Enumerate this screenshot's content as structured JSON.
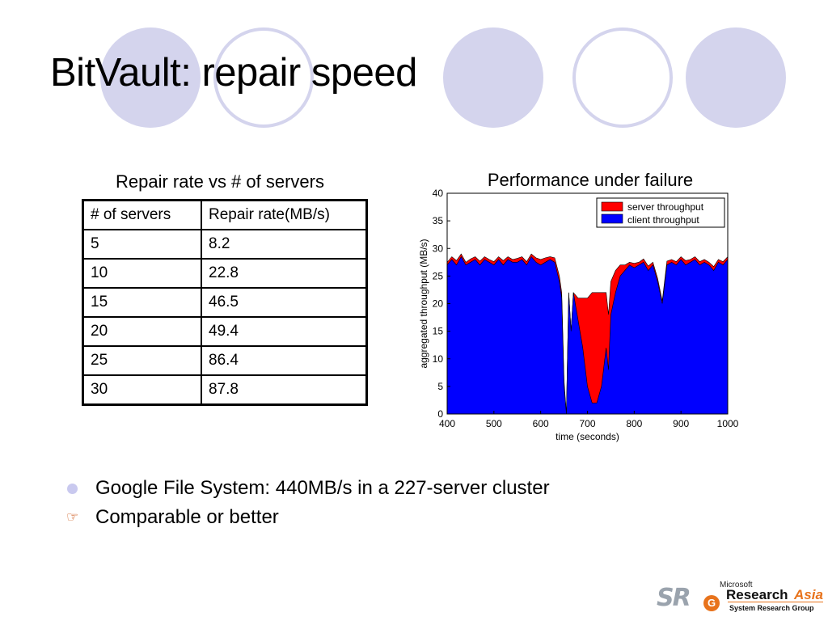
{
  "slide": {
    "title": "BitVault: repair speed"
  },
  "table": {
    "caption": "Repair rate vs # of servers",
    "headers": [
      "# of servers",
      "Repair rate(MB/s)"
    ],
    "rows": [
      [
        "5",
        "8.2"
      ],
      [
        "10",
        "22.8"
      ],
      [
        "15",
        "46.5"
      ],
      [
        "20",
        "49.4"
      ],
      [
        "25",
        "86.4"
      ],
      [
        "30",
        "87.8"
      ]
    ]
  },
  "bullets": [
    {
      "icon": "circle-bullet-icon",
      "text": "Google File System: 440MB/s in a 227-server cluster"
    },
    {
      "icon": "pointing-hand-icon",
      "text": "Comparable or better"
    }
  ],
  "logo": {
    "sr": "SR",
    "g": "G",
    "microsoft": "Microsoft",
    "research": "Research",
    "asia": "Asia",
    "group": "System Research Group"
  },
  "colors": {
    "server": "#ff0000",
    "client": "#0000ff",
    "deco_fill": "#d4d4ed",
    "deco_ring": "#d4d4ed"
  },
  "chart_data": [
    {
      "type": "table",
      "title": "Repair rate vs # of servers",
      "columns": [
        "# of servers",
        "Repair rate(MB/s)"
      ],
      "x": [
        5,
        10,
        15,
        20,
        25,
        30
      ],
      "values": [
        8.2,
        22.8,
        46.5,
        49.4,
        86.4,
        87.8
      ]
    },
    {
      "type": "area",
      "stacked": true,
      "title": "Performance under failure",
      "xlabel": "time (seconds)",
      "ylabel": "aggregated throughput (MB/s)",
      "xlim": [
        400,
        1000
      ],
      "ylim": [
        0,
        40
      ],
      "xticks": [
        400,
        500,
        600,
        700,
        800,
        900,
        1000
      ],
      "yticks": [
        0,
        5,
        10,
        15,
        20,
        25,
        30,
        35,
        40
      ],
      "legend": "top-right",
      "x": [
        400,
        410,
        420,
        430,
        440,
        450,
        460,
        470,
        480,
        490,
        500,
        510,
        520,
        530,
        540,
        550,
        560,
        570,
        580,
        590,
        600,
        610,
        620,
        630,
        640,
        645,
        650,
        655,
        660,
        665,
        670,
        680,
        690,
        700,
        710,
        720,
        730,
        740,
        745,
        750,
        760,
        770,
        780,
        790,
        800,
        810,
        820,
        830,
        840,
        850,
        860,
        870,
        880,
        890,
        900,
        910,
        920,
        930,
        940,
        950,
        960,
        970,
        980,
        990,
        1000
      ],
      "series": [
        {
          "name": "client throughput",
          "values": [
            27,
            28,
            27,
            28.5,
            27,
            27.5,
            28,
            27,
            28,
            27.5,
            27,
            28,
            27,
            28,
            27.5,
            27.5,
            28,
            27,
            28.5,
            27.5,
            27,
            27.5,
            28,
            27.5,
            24,
            21,
            5,
            0,
            22,
            15,
            22,
            17,
            12,
            5,
            2,
            2,
            5,
            12,
            8,
            18,
            22,
            25,
            26,
            27,
            26.5,
            27,
            27.5,
            26,
            27,
            24,
            20,
            27,
            27.5,
            27,
            28,
            27,
            27.5,
            28,
            27,
            27.5,
            27,
            26,
            27.5,
            27,
            28
          ]
        },
        {
          "name": "server throughput",
          "values": [
            0.5,
            0.5,
            0.8,
            0.5,
            0.5,
            0.6,
            0.5,
            0.7,
            0.5,
            0.5,
            0.6,
            0.5,
            0.8,
            0.5,
            0.5,
            0.7,
            0.5,
            0.6,
            0.5,
            0.8,
            1,
            0.8,
            0.5,
            0.8,
            1,
            1,
            1,
            0,
            0,
            0,
            0,
            4,
            9,
            16,
            20,
            20,
            17,
            10,
            10,
            6,
            4,
            2,
            1,
            0.5,
            0.8,
            0.5,
            0.6,
            0.8,
            0.5,
            0.6,
            0.5,
            0.7,
            0.5,
            0.6,
            0.5,
            0.8,
            0.5,
            0.5,
            0.6,
            0.5,
            0.5,
            0.7,
            0.5,
            0.6,
            0.5
          ]
        }
      ]
    }
  ]
}
